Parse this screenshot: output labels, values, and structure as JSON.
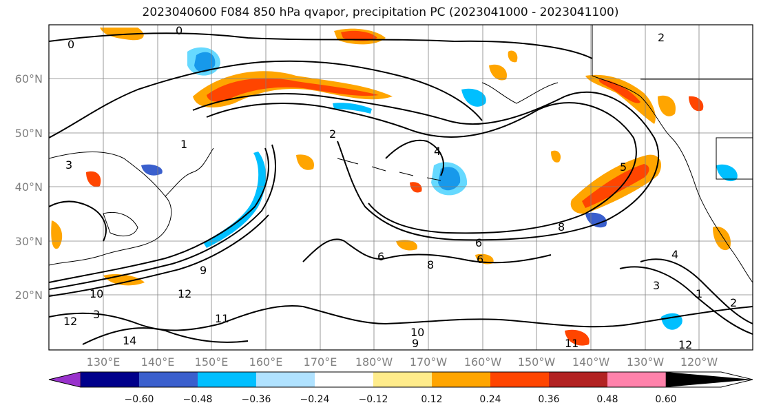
{
  "title": "2023040600 F084 850 hPa qvapor, precipitation PC (2023041000 - 2023041100)",
  "map": {
    "lat_labels": [
      "60°N",
      "50°N",
      "40°N",
      "30°N",
      "20°N"
    ],
    "lon_labels": [
      "130°E",
      "140°E",
      "150°E",
      "160°E",
      "170°E",
      "180°W",
      "170°W",
      "160°W",
      "150°W",
      "140°W",
      "130°W",
      "120°W"
    ],
    "contour_labels": [
      "0",
      "2",
      "0",
      "1",
      "3",
      "2",
      "4",
      "5",
      "6",
      "8",
      "9",
      "10",
      "12",
      "6",
      "8",
      "6",
      "9",
      "10",
      "11",
      "12",
      "3",
      "4",
      "1",
      "2",
      "11",
      "12",
      "3",
      "14"
    ]
  },
  "colorbar": {
    "colors": [
      "#9932cc",
      "#00008b",
      "#3a5fcd",
      "#00bfff",
      "#b0e2ff",
      "#ffffff",
      "#ffec8b",
      "#ffa500",
      "#ff4500",
      "#b22222",
      "#ff82ab"
    ],
    "ticks": [
      "−0.60",
      "−0.48",
      "−0.36",
      "−0.24",
      "−0.12",
      "0.12",
      "0.24",
      "0.36",
      "0.48",
      "0.60"
    ]
  }
}
